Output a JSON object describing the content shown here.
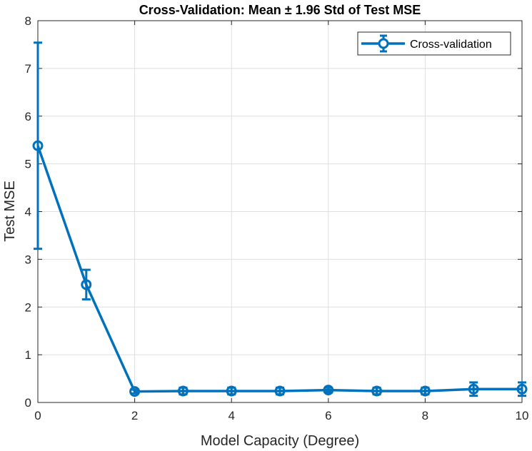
{
  "chart_data": {
    "type": "line",
    "title": "Cross-Validation: Mean ± 1.96 Std of Test MSE",
    "xlabel": "Model Capacity (Degree)",
    "ylabel": "Test MSE",
    "xlim": [
      0,
      10
    ],
    "ylim": [
      0,
      8
    ],
    "xticks": [
      0,
      2,
      4,
      6,
      8,
      10
    ],
    "yticks": [
      0,
      1,
      2,
      3,
      4,
      5,
      6,
      7,
      8
    ],
    "grid": true,
    "legend_position": "top-right",
    "series": [
      {
        "name": "Cross-validation",
        "color": "#0072BD",
        "marker": "circle",
        "error_bars": true,
        "x": [
          0,
          1,
          2,
          3,
          4,
          5,
          6,
          7,
          8,
          9,
          10
        ],
        "y": [
          5.38,
          2.47,
          0.23,
          0.24,
          0.24,
          0.24,
          0.26,
          0.24,
          0.24,
          0.28,
          0.28
        ],
        "err_low": [
          3.22,
          2.16,
          0.19,
          0.17,
          0.17,
          0.17,
          0.21,
          0.17,
          0.17,
          0.14,
          0.14
        ],
        "err_high": [
          7.54,
          2.78,
          0.27,
          0.31,
          0.31,
          0.31,
          0.31,
          0.31,
          0.31,
          0.42,
          0.42
        ]
      }
    ]
  }
}
